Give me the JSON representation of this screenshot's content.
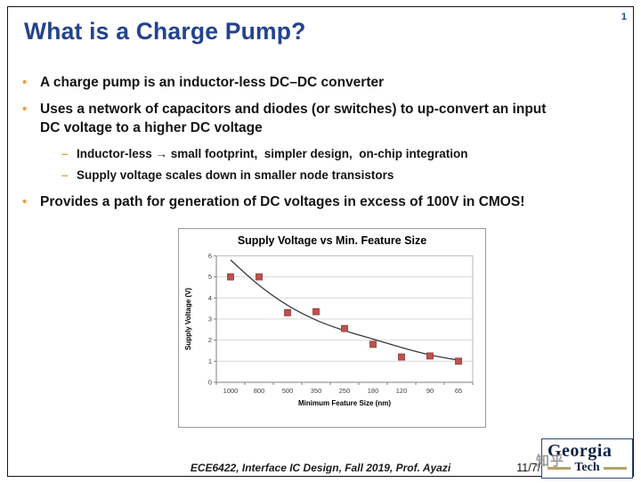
{
  "slide": {
    "page_number": "1",
    "title": "What is a Charge Pump?",
    "bullet_char": "•",
    "dash_char": "–",
    "bullets": [
      {
        "text": "A charge pump is an inductor-less DC–DC converter"
      },
      {
        "text": "Uses a network of capacitors and diodes (or switches) to up-convert an input\nDC voltage to a higher DC voltage"
      },
      {
        "text": "Provides a path for generation of DC voltages in excess of 100V in CMOS!"
      }
    ],
    "sub_bullets": [
      {
        "text": "Inductor-less → small footprint,  simpler design,  on-chip integration"
      },
      {
        "text": "Supply voltage scales down in smaller node transistors"
      }
    ],
    "footer": {
      "course": "ECE6422, Interface IC Design, Fall 2019, Prof.  Ayazi",
      "date": "11/7/19"
    },
    "logo": {
      "line1": "Georgia",
      "line2": "Tech"
    },
    "watermark": "知乎"
  },
  "chart_data": {
    "type": "scatter",
    "title": "Supply Voltage vs Min. Feature Size",
    "xlabel": "Minimum Feature Size (nm)",
    "ylabel": "Supply Voltage (V)",
    "categories": [
      "1000",
      "800",
      "500",
      "350",
      "250",
      "180",
      "120",
      "90",
      "65"
    ],
    "values": [
      5.0,
      5.0,
      3.3,
      3.35,
      2.55,
      1.8,
      1.2,
      1.25,
      1.0
    ],
    "trend": [
      5.8,
      4.6,
      3.65,
      2.95,
      2.45,
      2.05,
      1.65,
      1.3,
      1.05
    ],
    "ylim": [
      0,
      6
    ],
    "yticks": [
      0,
      1,
      2,
      3,
      4,
      5,
      6
    ],
    "grid": true,
    "legend": "none",
    "marker_color": "#C0504D",
    "marker_border": "#8C3836",
    "line_color": "#3a3a3a"
  },
  "colors": {
    "accent_blue": "#24438D",
    "bullet_orange": "#E8A23C",
    "navy": "#0C2340",
    "gold": "#B3A369",
    "grid_gray": "#d9d9d9"
  }
}
